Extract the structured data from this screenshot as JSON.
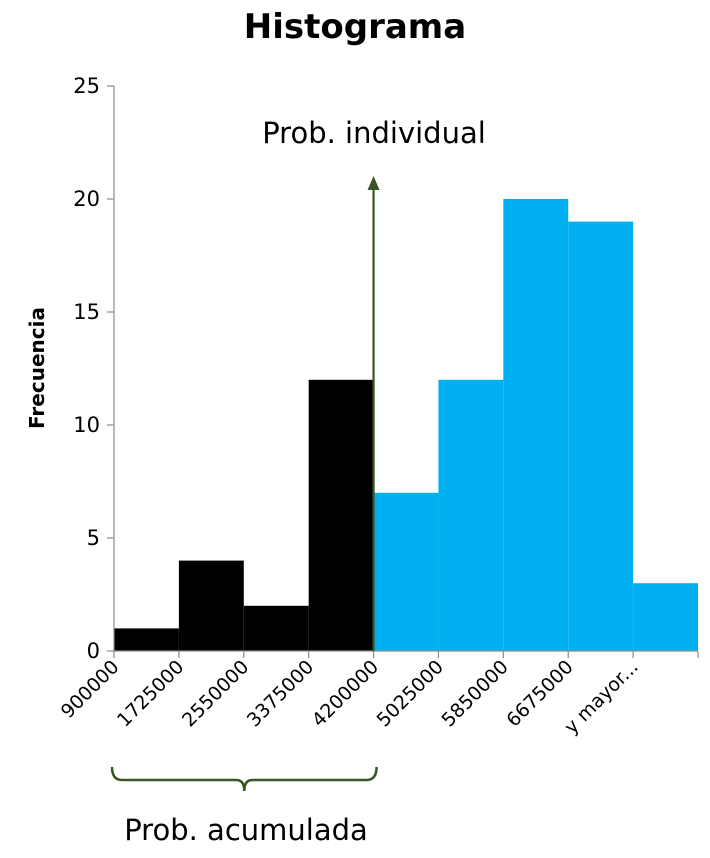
{
  "chart_data": {
    "type": "bar",
    "title": "Histograma",
    "xlabel": "",
    "ylabel": "Frecuencia",
    "ylim": [
      0,
      25
    ],
    "yticks": [
      0,
      5,
      10,
      15,
      20,
      25
    ],
    "grid": false,
    "legend": "none",
    "categories": [
      "900000",
      "1725000",
      "2550000",
      "3375000",
      "4200000",
      "5025000",
      "5850000",
      "6675000",
      "y mayor..."
    ],
    "values": [
      1,
      4,
      2,
      12,
      7,
      12,
      20,
      19,
      3
    ],
    "bar_colors": [
      "#000000",
      "#000000",
      "#000000",
      "#000000",
      "#00b0f0",
      "#00b0f0",
      "#00b0f0",
      "#00b0f0",
      "#00b0f0"
    ],
    "annotations": {
      "individual": "Prob. individual",
      "cumulative": "Prob. acumulada",
      "arrow_color": "#375623",
      "brace_color": "#375623"
    }
  }
}
